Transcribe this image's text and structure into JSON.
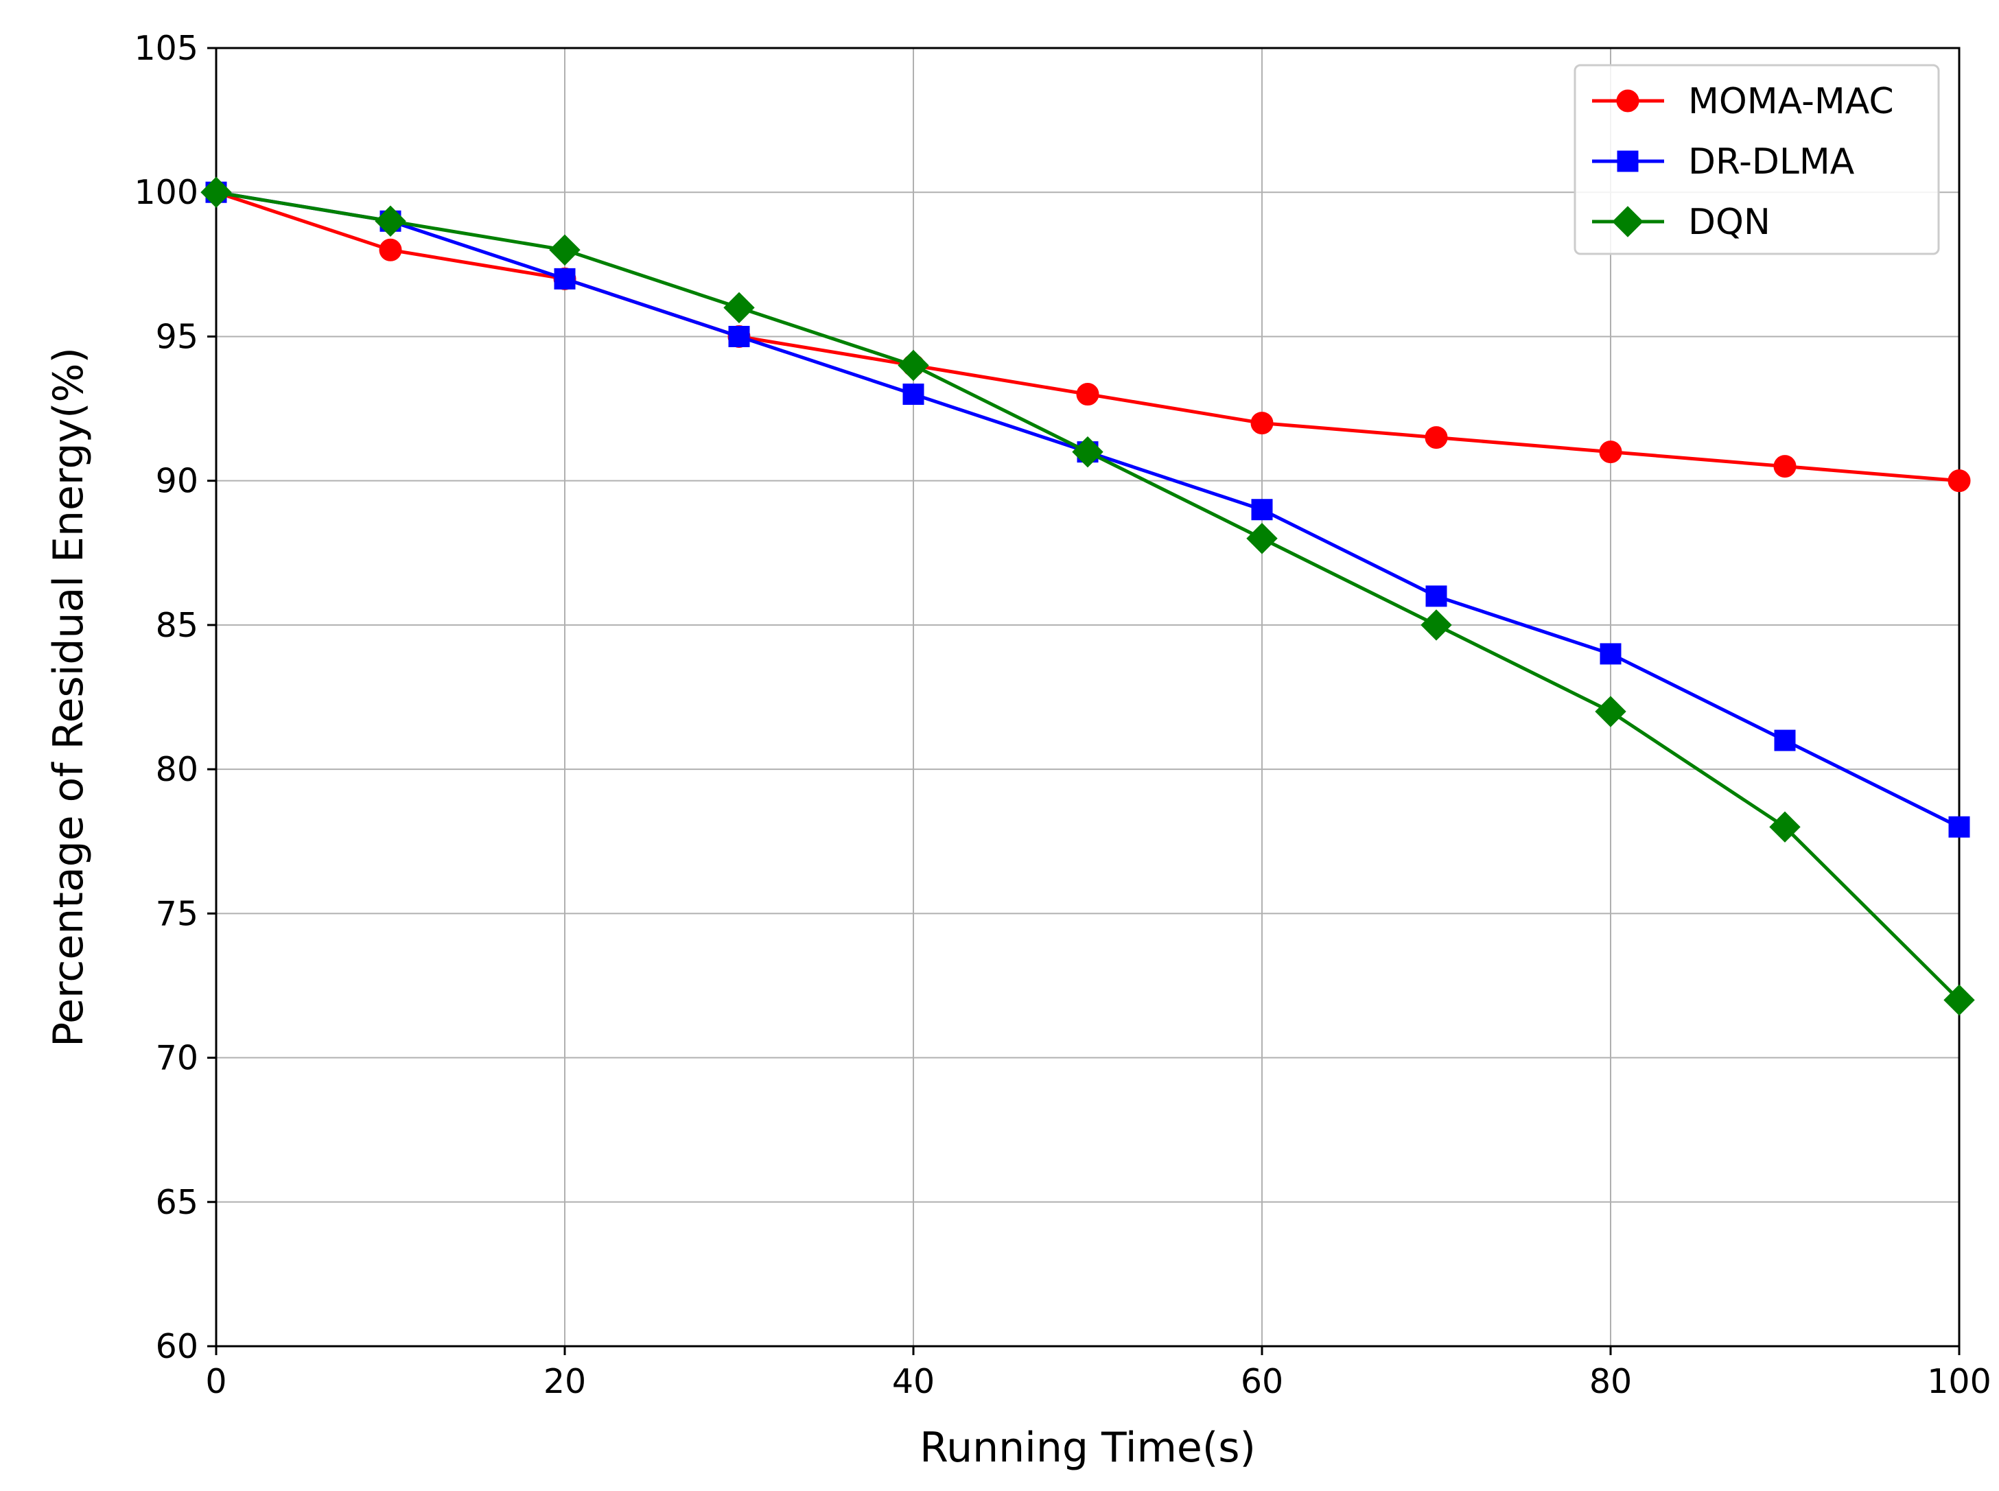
{
  "chart_data": {
    "type": "line",
    "xlabel": "Running Time(s)",
    "ylabel": "Percentage of Residual Energy(%)",
    "xlim": [
      0,
      100
    ],
    "ylim": [
      60,
      105
    ],
    "xticks": [
      0,
      20,
      40,
      60,
      80,
      100
    ],
    "yticks": [
      60,
      65,
      70,
      75,
      80,
      85,
      90,
      95,
      100,
      105
    ],
    "grid": true,
    "legend_position": "top-right",
    "x": [
      0,
      10,
      20,
      30,
      40,
      50,
      60,
      70,
      80,
      90,
      100
    ],
    "series": [
      {
        "name": "MOMA-MAC",
        "color": "#ff0000",
        "marker": "circle",
        "values": [
          100,
          98,
          97,
          95,
          94,
          93,
          92,
          91.5,
          91,
          90.5,
          90
        ]
      },
      {
        "name": "DR-DLMA",
        "color": "#0000ff",
        "marker": "square",
        "values": [
          100,
          99,
          97,
          95,
          93,
          91,
          89,
          86,
          84,
          81,
          78
        ]
      },
      {
        "name": "DQN",
        "color": "#008000",
        "marker": "diamond",
        "values": [
          100,
          99,
          98,
          96,
          94,
          91,
          88,
          85,
          82,
          78,
          72
        ]
      }
    ]
  }
}
